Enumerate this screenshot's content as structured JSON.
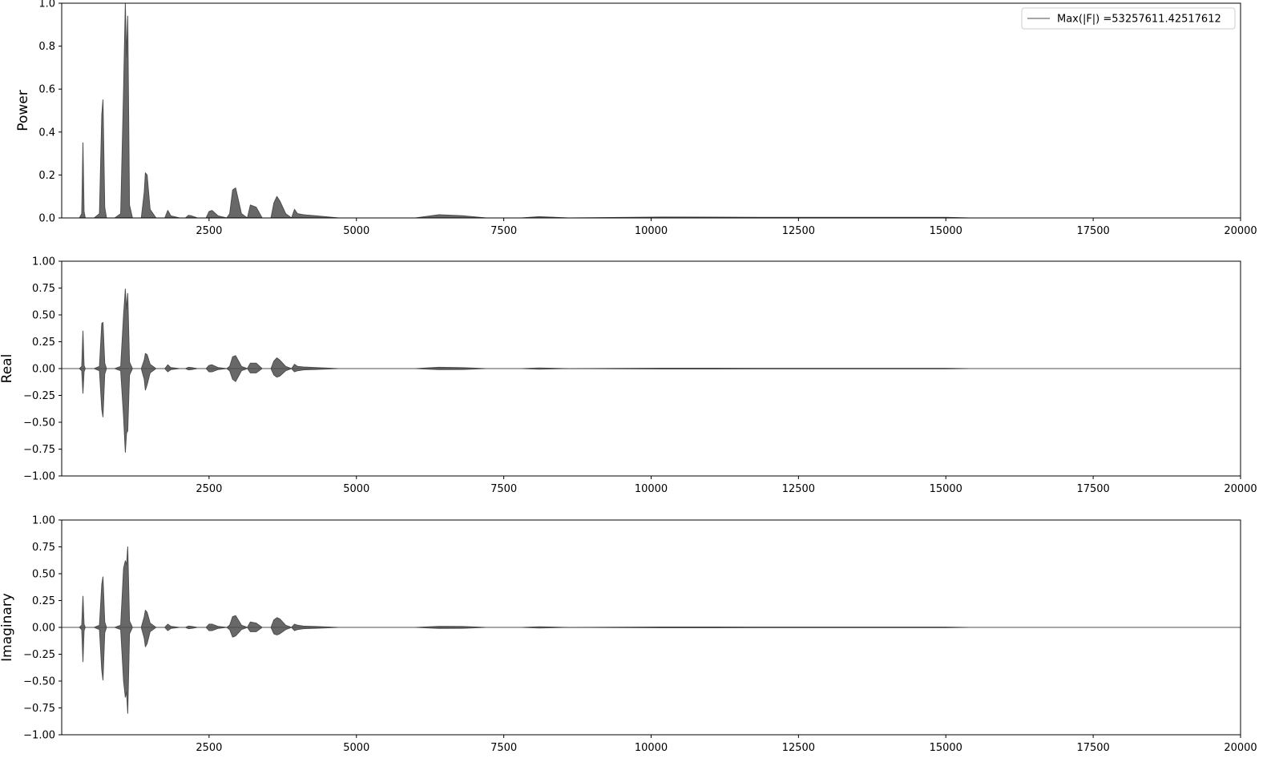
{
  "chart_data": [
    {
      "type": "line",
      "name": "power-panel",
      "ylabel": "Power",
      "xlim": [
        0,
        20000
      ],
      "ylim": [
        0.0,
        1.0
      ],
      "xticks": [
        2500,
        5000,
        7500,
        10000,
        12500,
        15000,
        17500,
        20000
      ],
      "xtick_labels": [
        "2500",
        "5000",
        "7500",
        "10000",
        "12500",
        "15000",
        "17500",
        "20000"
      ],
      "yticks": [
        0.0,
        0.2,
        0.4,
        0.6,
        0.8,
        1.0
      ],
      "ytick_labels": [
        "0.0",
        "0.2",
        "0.4",
        "0.6",
        "0.8",
        "1.0"
      ],
      "legend": {
        "label": "Max(|F|) =53257611.42517612",
        "loc": "upper right"
      },
      "line_color": "#4d4d4d",
      "series": [
        {
          "x": [
            0,
            300,
            340,
            360,
            380,
            400,
            550,
            640,
            680,
            700,
            730,
            760,
            900,
            1000,
            1050,
            1080,
            1100,
            1120,
            1150,
            1200,
            1350,
            1400,
            1420,
            1450,
            1500,
            1600,
            1750,
            1800,
            1850,
            2000,
            2100,
            2150,
            2200,
            2300,
            2450,
            2500,
            2550,
            2650,
            2800,
            2850,
            2900,
            2950,
            3050,
            3150,
            3200,
            3300,
            3400,
            3550,
            3600,
            3650,
            3700,
            3800,
            3900,
            3950,
            4000,
            4100,
            4300,
            4700,
            6000,
            6400,
            6800,
            7200,
            7800,
            8100,
            8600,
            10200,
            11800,
            14200,
            15000,
            15400,
            20000
          ],
          "y": [
            0.0,
            0.0,
            0.02,
            0.35,
            0.03,
            0.0,
            0.0,
            0.02,
            0.48,
            0.55,
            0.05,
            0.0,
            0.0,
            0.02,
            0.6,
            1.0,
            0.75,
            0.94,
            0.06,
            0.0,
            0.0,
            0.12,
            0.21,
            0.2,
            0.04,
            0.0,
            0.0,
            0.035,
            0.01,
            0.0,
            0.0,
            0.012,
            0.01,
            0.0,
            0.0,
            0.03,
            0.035,
            0.01,
            0.0,
            0.02,
            0.13,
            0.14,
            0.02,
            0.0,
            0.06,
            0.05,
            0.0,
            0.0,
            0.07,
            0.1,
            0.08,
            0.02,
            0.0,
            0.04,
            0.02,
            0.015,
            0.01,
            0.0,
            0.0,
            0.015,
            0.01,
            0.0,
            0.0,
            0.006,
            0.0,
            0.004,
            0.003,
            0.003,
            0.003,
            0.0,
            0.0
          ]
        }
      ]
    },
    {
      "type": "line",
      "name": "real-panel",
      "ylabel": "Real",
      "xlim": [
        0,
        20000
      ],
      "ylim": [
        -1.0,
        1.0
      ],
      "xticks": [
        2500,
        5000,
        7500,
        10000,
        12500,
        15000,
        17500,
        20000
      ],
      "xtick_labels": [
        "2500",
        "5000",
        "7500",
        "10000",
        "12500",
        "15000",
        "17500",
        "20000"
      ],
      "yticks": [
        -1.0,
        -0.75,
        -0.5,
        -0.25,
        0.0,
        0.25,
        0.5,
        0.75,
        1.0
      ],
      "ytick_labels": [
        "−1.00",
        "−0.75",
        "−0.50",
        "−0.25",
        "0.00",
        "0.25",
        "0.50",
        "0.75",
        "1.00"
      ],
      "line_color": "#4d4d4d",
      "series": [
        {
          "name": "upper-envelope",
          "x": [
            0,
            300,
            340,
            360,
            380,
            400,
            550,
            640,
            680,
            700,
            730,
            760,
            900,
            1000,
            1050,
            1080,
            1100,
            1120,
            1150,
            1200,
            1350,
            1400,
            1420,
            1450,
            1500,
            1600,
            1750,
            1800,
            1850,
            2000,
            2100,
            2150,
            2200,
            2300,
            2450,
            2500,
            2550,
            2650,
            2800,
            2850,
            2900,
            2950,
            3050,
            3150,
            3200,
            3300,
            3400,
            3550,
            3600,
            3650,
            3700,
            3800,
            3900,
            3950,
            4000,
            4100,
            4300,
            4700,
            6000,
            6400,
            6800,
            7200,
            7800,
            8100,
            8600,
            10200,
            11800,
            14200,
            15000,
            15400,
            20000
          ],
          "y": [
            0.0,
            0.0,
            0.02,
            0.35,
            0.03,
            0.0,
            0.0,
            0.02,
            0.42,
            0.43,
            0.05,
            0.0,
            0.0,
            0.02,
            0.5,
            0.74,
            0.55,
            0.7,
            0.06,
            0.0,
            0.0,
            0.08,
            0.14,
            0.13,
            0.04,
            0.0,
            0.0,
            0.035,
            0.01,
            0.0,
            0.0,
            0.012,
            0.01,
            0.0,
            0.0,
            0.03,
            0.035,
            0.01,
            0.0,
            0.02,
            0.11,
            0.12,
            0.02,
            0.0,
            0.05,
            0.05,
            0.0,
            0.0,
            0.07,
            0.1,
            0.08,
            0.02,
            0.0,
            0.04,
            0.02,
            0.015,
            0.01,
            0.0,
            0.0,
            0.012,
            0.008,
            0.0,
            0.0,
            0.006,
            0.0,
            0.004,
            0.003,
            0.003,
            0.003,
            0.0,
            0.0
          ]
        },
        {
          "name": "lower-envelope",
          "x": [
            0,
            300,
            340,
            360,
            380,
            400,
            550,
            640,
            680,
            700,
            730,
            760,
            900,
            1000,
            1050,
            1080,
            1100,
            1120,
            1150,
            1200,
            1350,
            1400,
            1420,
            1450,
            1500,
            1600,
            1750,
            1800,
            1850,
            2000,
            2100,
            2150,
            2200,
            2300,
            2450,
            2500,
            2550,
            2650,
            2800,
            2850,
            2900,
            2950,
            3050,
            3150,
            3200,
            3300,
            3400,
            3550,
            3600,
            3650,
            3700,
            3800,
            3900,
            3950,
            4000,
            4100,
            4300,
            4700,
            6000,
            6400,
            6800,
            7200,
            7800,
            8100,
            8600,
            10200,
            11800,
            14200,
            15000,
            15400,
            20000
          ],
          "y": [
            0.0,
            0.0,
            -0.02,
            -0.23,
            -0.03,
            0.0,
            0.0,
            -0.02,
            -0.38,
            -0.45,
            -0.05,
            0.0,
            0.0,
            -0.02,
            -0.45,
            -0.78,
            -0.6,
            -0.58,
            -0.06,
            0.0,
            0.0,
            -0.1,
            -0.2,
            -0.15,
            -0.04,
            0.0,
            0.0,
            -0.03,
            -0.01,
            0.0,
            0.0,
            -0.012,
            -0.01,
            0.0,
            0.0,
            -0.03,
            -0.03,
            -0.01,
            0.0,
            -0.02,
            -0.1,
            -0.12,
            -0.02,
            0.0,
            -0.04,
            -0.04,
            0.0,
            0.0,
            -0.06,
            -0.08,
            -0.07,
            -0.02,
            0.0,
            -0.03,
            -0.02,
            -0.012,
            -0.008,
            0.0,
            0.0,
            -0.01,
            -0.008,
            0.0,
            0.0,
            -0.005,
            0.0,
            -0.004,
            -0.003,
            -0.003,
            -0.003,
            0.0,
            0.0
          ]
        }
      ]
    },
    {
      "type": "line",
      "name": "imaginary-panel",
      "ylabel": "Imaginary",
      "xlim": [
        0,
        20000
      ],
      "ylim": [
        -1.0,
        1.0
      ],
      "xticks": [
        2500,
        5000,
        7500,
        10000,
        12500,
        15000,
        17500,
        20000
      ],
      "xtick_labels": [
        "2500",
        "5000",
        "7500",
        "10000",
        "12500",
        "15000",
        "17500",
        "20000"
      ],
      "yticks": [
        -1.0,
        -0.75,
        -0.5,
        -0.25,
        0.0,
        0.25,
        0.5,
        0.75,
        1.0
      ],
      "ytick_labels": [
        "−1.00",
        "−0.75",
        "−0.50",
        "−0.25",
        "0.00",
        "0.25",
        "0.50",
        "0.75",
        "1.00"
      ],
      "line_color": "#4d4d4d",
      "series": [
        {
          "name": "upper-envelope",
          "x": [
            0,
            300,
            340,
            360,
            380,
            400,
            550,
            640,
            680,
            700,
            730,
            760,
            900,
            1000,
            1050,
            1080,
            1100,
            1120,
            1150,
            1200,
            1350,
            1400,
            1420,
            1450,
            1500,
            1600,
            1750,
            1800,
            1850,
            2000,
            2100,
            2150,
            2200,
            2300,
            2450,
            2500,
            2550,
            2650,
            2800,
            2850,
            2900,
            2950,
            3050,
            3150,
            3200,
            3300,
            3400,
            3550,
            3600,
            3650,
            3700,
            3800,
            3900,
            3950,
            4000,
            4100,
            4300,
            4700,
            6000,
            6400,
            6800,
            7200,
            7800,
            8100,
            8600,
            10200,
            11800,
            14200,
            15000,
            15400,
            20000
          ],
          "y": [
            0.0,
            0.0,
            0.02,
            0.29,
            0.03,
            0.0,
            0.0,
            0.02,
            0.4,
            0.47,
            0.05,
            0.0,
            0.0,
            0.02,
            0.55,
            0.62,
            0.58,
            0.75,
            0.06,
            0.0,
            0.0,
            0.1,
            0.16,
            0.14,
            0.04,
            0.0,
            0.0,
            0.03,
            0.01,
            0.0,
            0.0,
            0.012,
            0.01,
            0.0,
            0.0,
            0.03,
            0.03,
            0.01,
            0.0,
            0.02,
            0.1,
            0.11,
            0.02,
            0.0,
            0.05,
            0.04,
            0.0,
            0.0,
            0.07,
            0.09,
            0.08,
            0.02,
            0.0,
            0.03,
            0.02,
            0.012,
            0.008,
            0.0,
            0.0,
            0.01,
            0.008,
            0.0,
            0.0,
            0.006,
            0.0,
            0.004,
            0.003,
            0.003,
            0.003,
            0.0,
            0.0
          ]
        },
        {
          "name": "lower-envelope",
          "x": [
            0,
            300,
            340,
            360,
            380,
            400,
            550,
            640,
            680,
            700,
            730,
            760,
            900,
            1000,
            1050,
            1080,
            1100,
            1120,
            1150,
            1200,
            1350,
            1400,
            1420,
            1450,
            1500,
            1600,
            1750,
            1800,
            1850,
            2000,
            2100,
            2150,
            2200,
            2300,
            2450,
            2500,
            2550,
            2650,
            2800,
            2850,
            2900,
            2950,
            3050,
            3150,
            3200,
            3300,
            3400,
            3550,
            3600,
            3650,
            3700,
            3800,
            3900,
            3950,
            4000,
            4100,
            4300,
            4700,
            6000,
            6400,
            6800,
            7200,
            7800,
            8100,
            8600,
            10200,
            11800,
            14200,
            15000,
            15400,
            20000
          ],
          "y": [
            0.0,
            0.0,
            -0.02,
            -0.32,
            -0.03,
            0.0,
            0.0,
            -0.02,
            -0.4,
            -0.49,
            -0.05,
            0.0,
            0.0,
            -0.02,
            -0.5,
            -0.65,
            -0.6,
            -0.8,
            -0.06,
            0.0,
            0.0,
            -0.1,
            -0.18,
            -0.15,
            -0.04,
            0.0,
            0.0,
            -0.03,
            -0.01,
            0.0,
            0.0,
            -0.012,
            -0.01,
            0.0,
            0.0,
            -0.03,
            -0.03,
            -0.01,
            0.0,
            -0.02,
            -0.09,
            -0.08,
            -0.02,
            0.0,
            -0.04,
            -0.04,
            0.0,
            0.0,
            -0.06,
            -0.07,
            -0.06,
            -0.02,
            0.0,
            -0.03,
            -0.02,
            -0.012,
            -0.008,
            0.0,
            0.0,
            -0.01,
            -0.008,
            0.0,
            0.0,
            -0.005,
            0.0,
            -0.004,
            -0.003,
            -0.003,
            -0.003,
            0.0,
            0.0
          ]
        }
      ]
    }
  ]
}
